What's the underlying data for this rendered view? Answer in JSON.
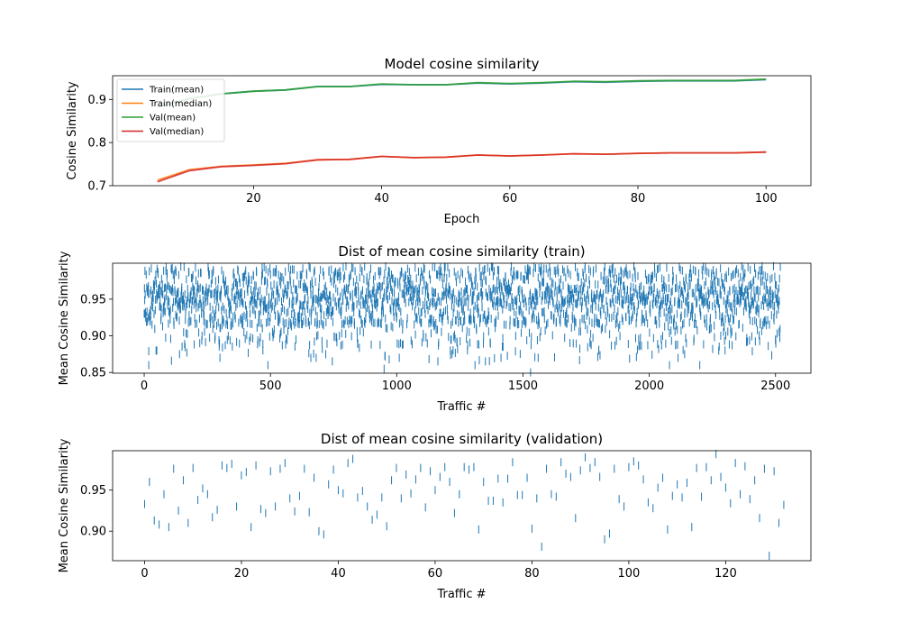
{
  "chart_data": [
    {
      "type": "line",
      "title": "Model cosine similarity",
      "xlabel": "Epoch",
      "ylabel": "Cosine Similarity",
      "xlim": [
        -2,
        107
      ],
      "ylim": [
        0.7,
        0.955
      ],
      "xticks": [
        20,
        40,
        60,
        80,
        100
      ],
      "yticks": [
        0.7,
        0.8,
        0.9
      ],
      "ytick_decimals": 1,
      "legend": "upper-left",
      "x": [
        5,
        10,
        15,
        20,
        25,
        30,
        35,
        40,
        45,
        50,
        55,
        60,
        65,
        70,
        75,
        80,
        85,
        90,
        95,
        100
      ],
      "series": [
        {
          "name": "Train(mean)",
          "color": "#1f77b4",
          "values": [
            0.883,
            0.902,
            0.913,
            0.919,
            0.922,
            0.93,
            0.93,
            0.935,
            0.934,
            0.934,
            0.938,
            0.936,
            0.938,
            0.941,
            0.94,
            0.942,
            0.943,
            0.943,
            0.943,
            0.946
          ]
        },
        {
          "name": "Train(median)",
          "color": "#ff7f0e",
          "values": [
            0.713,
            0.737,
            0.745,
            0.748,
            0.752,
            0.76,
            0.761,
            0.768,
            0.765,
            0.766,
            0.771,
            0.769,
            0.771,
            0.774,
            0.773,
            0.775,
            0.776,
            0.776,
            0.776,
            0.778
          ]
        },
        {
          "name": "Val(mean)",
          "color": "#2ca02c",
          "values": [
            0.882,
            0.902,
            0.913,
            0.919,
            0.922,
            0.93,
            0.93,
            0.936,
            0.934,
            0.934,
            0.939,
            0.937,
            0.939,
            0.942,
            0.941,
            0.943,
            0.944,
            0.944,
            0.944,
            0.947
          ]
        },
        {
          "name": "Val(median)",
          "color": "#d62728",
          "values": [
            0.709,
            0.735,
            0.744,
            0.747,
            0.751,
            0.76,
            0.761,
            0.768,
            0.765,
            0.766,
            0.771,
            0.769,
            0.771,
            0.774,
            0.773,
            0.775,
            0.776,
            0.776,
            0.776,
            0.778
          ]
        }
      ]
    },
    {
      "type": "scatter",
      "title": "Dist of mean cosine similarity (train)",
      "xlabel": "Traffic #",
      "ylabel": "Mean Cosine Similarity",
      "xlim": [
        -125,
        2640
      ],
      "ylim": [
        0.849,
        0.999
      ],
      "xticks": [
        0,
        500,
        1000,
        1500,
        2000,
        2500
      ],
      "yticks": [
        0.85,
        0.9,
        0.95
      ],
      "ytick_decimals": 2,
      "marker": "|",
      "color": "#1f77b4",
      "n_points": 2520,
      "points_note": "dense random scatter, values mostly 0.88-0.995",
      "sample_points": [
        [
          3,
          0.93
        ],
        [
          18,
          0.86
        ],
        [
          50,
          0.88
        ],
        [
          80,
          0.965
        ],
        [
          140,
          0.875
        ],
        [
          200,
          0.95
        ],
        [
          280,
          0.895
        ],
        [
          300,
          0.87
        ],
        [
          390,
          0.98
        ],
        [
          470,
          0.88
        ],
        [
          490,
          0.86
        ],
        [
          580,
          0.99
        ],
        [
          660,
          0.87
        ],
        [
          700,
          0.92
        ],
        [
          780,
          0.94
        ],
        [
          950,
          0.855
        ],
        [
          1010,
          0.87
        ],
        [
          1180,
          0.98
        ],
        [
          1280,
          0.88
        ],
        [
          1310,
          0.86
        ],
        [
          1400,
          0.99
        ],
        [
          1530,
          0.85
        ],
        [
          1560,
          0.87
        ],
        [
          1680,
          0.96
        ],
        [
          1800,
          0.88
        ],
        [
          1920,
          0.93
        ],
        [
          2080,
          0.86
        ],
        [
          2140,
          0.875
        ],
        [
          2200,
          0.86
        ],
        [
          2300,
          0.88
        ],
        [
          2400,
          0.99
        ],
        [
          2500,
          0.895
        ]
      ]
    },
    {
      "type": "scatter",
      "title": "Dist of mean cosine similarity (validation)",
      "xlabel": "Traffic #",
      "ylabel": "Mean Cosine Similarity",
      "xlim": [
        -6.6,
        137.6
      ],
      "ylim": [
        0.864,
        0.998
      ],
      "xticks": [
        0,
        20,
        40,
        60,
        80,
        100,
        120
      ],
      "yticks": [
        0.9,
        0.95
      ],
      "ytick_decimals": 2,
      "marker": "|",
      "color": "#1f77b4",
      "x_start": 0,
      "values": [
        0.933,
        0.96,
        0.913,
        0.908,
        0.945,
        0.905,
        0.976,
        0.925,
        0.962,
        0.91,
        0.977,
        0.938,
        0.952,
        0.945,
        0.917,
        0.926,
        0.98,
        0.977,
        0.982,
        0.93,
        0.968,
        0.972,
        0.905,
        0.98,
        0.927,
        0.922,
        0.973,
        0.93,
        0.976,
        0.983,
        0.94,
        0.924,
        0.943,
        0.976,
        0.923,
        0.965,
        0.9,
        0.896,
        0.957,
        0.975,
        0.95,
        0.946,
        0.983,
        0.988,
        0.941,
        0.949,
        0.93,
        0.914,
        0.92,
        0.941,
        0.906,
        0.962,
        0.977,
        0.94,
        0.969,
        0.946,
        0.963,
        0.977,
        0.929,
        0.973,
        0.95,
        0.966,
        0.978,
        0.96,
        0.922,
        0.945,
        0.978,
        0.975,
        0.978,
        0.902,
        0.96,
        0.937,
        0.937,
        0.964,
        0.935,
        0.964,
        0.984,
        0.944,
        0.944,
        0.965,
        0.903,
        0.94,
        0.881,
        0.976,
        0.945,
        0.942,
        0.984,
        0.97,
        0.966,
        0.916,
        0.974,
        0.99,
        0.977,
        0.984,
        0.966,
        0.89,
        0.897,
        0.976,
        0.939,
        0.93,
        0.978,
        0.985,
        0.98,
        0.963,
        0.935,
        0.928,
        0.953,
        0.965,
        0.902,
        0.943,
        0.957,
        0.941,
        0.959,
        0.905,
        0.977,
        0.942,
        0.978,
        0.962,
        0.994,
        0.966,
        0.953,
        0.934,
        0.983,
        0.945,
        0.979,
        0.939,
        0.962,
        0.916,
        0.976,
        0.87,
        0.973,
        0.91,
        0.932
      ]
    }
  ]
}
